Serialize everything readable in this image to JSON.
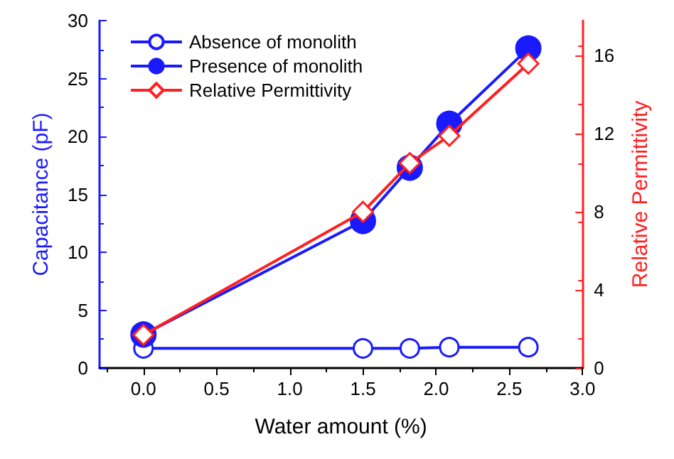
{
  "chart_data": {
    "type": "line",
    "xlabel": "Water amount (%)",
    "ylabel": "Capacitance (pF)",
    "y2label": "Relative Permittivity",
    "x": [
      0,
      1.5,
      1.82,
      2.09,
      2.63
    ],
    "series": [
      {
        "name": "Absence of monolith",
        "color": "#1a1aff",
        "marker": "circle",
        "values": [
          1.7,
          1.7,
          1.7,
          1.8,
          1.8
        ]
      },
      {
        "name": "Presence of monolith",
        "color": "#1a1aff",
        "marker": "circle",
        "colors": [
          "#1a1aff",
          "#1a1aff",
          "#1a1aff",
          "#1a1aff",
          "#1a1aff"
        ],
        "values": [
          2.9,
          12.7,
          17.3,
          21.1,
          27.6
        ]
      },
      {
        "name": "Relative Permittivity",
        "color": "#ff2020",
        "marker": "diamond",
        "axis": "y2",
        "values": [
          1.7,
          8.0,
          10.5,
          11.9,
          15.6
        ]
      }
    ],
    "xlim": [
      -0.3,
      3.0
    ],
    "xticks": [
      {
        "value": 0,
        "label": "0.0"
      },
      0.5,
      {
        "value": 1,
        "label": "1.0"
      },
      1.5,
      {
        "value": 2,
        "label": "2.0"
      },
      2.5,
      {
        "value": 3,
        "label": "3.0"
      }
    ],
    "ylim": [
      0,
      30
    ],
    "yticks": [
      0,
      5,
      10,
      15,
      20,
      25,
      30
    ],
    "y2lim": [
      0,
      17.8
    ],
    "y2ticks": [
      0,
      4,
      8,
      12,
      16
    ],
    "grid": false,
    "legend": "top left",
    "line_style": "solid"
  }
}
